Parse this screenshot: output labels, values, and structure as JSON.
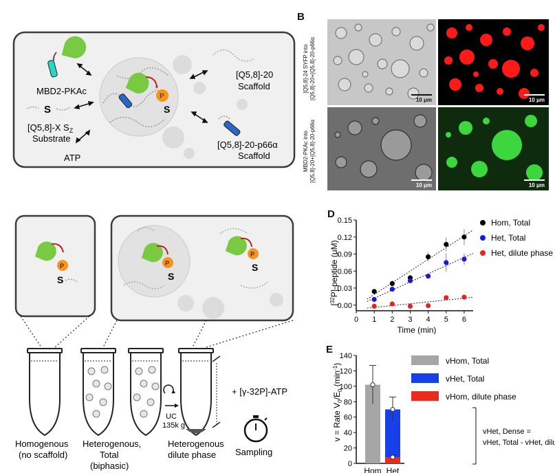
{
  "panels": {
    "B": "B",
    "D": "D",
    "E": "E"
  },
  "panelA": {
    "mbd2": "MBD2-PKAc",
    "substrate_line1": "[Q5,8]-X S",
    "substrate_sub": "Z",
    "substrate_line2": "Substrate",
    "atp": "ATP",
    "scaffold20_line1": "[Q5,8]-20",
    "scaffold20_line2": "Scaffold",
    "scaffoldp66_line1": "[Q5,8]-20-p66α",
    "scaffoldp66_line2": "Scaffold",
    "p": "P",
    "s": "S"
  },
  "panelB": {
    "row1_label1": "[Q5,8]-24 SYFP into",
    "row1_label2": "[Q5,8]-20+[Q5,8]-20-p66α",
    "row2_label1": "MBD2-PKAc into",
    "row2_label2": "[Q5,8]-20+[Q5,8]-20-p66α",
    "scale": "10 μm"
  },
  "panelC": {
    "tube1_line1": "Homogenous",
    "tube1_line2": "(no scaffold)",
    "tube2_line1": "Heterogenous,",
    "tube2_line2": "Total",
    "tube2_line3": "(biphasic)",
    "tube4_line1": "Heterogenous",
    "tube4_line2": "dilute phase",
    "uc_line1": "UC",
    "uc_line2": "135k g",
    "atp": "+ [γ-32P]-ATP",
    "sampling": "Sampling"
  },
  "chart_data": [
    {
      "type": "scatter",
      "xlabel": "Time (min)",
      "ylabel": "[32P]-peptide (μM)",
      "xlim": [
        0,
        6.5
      ],
      "ylim": [
        -0.01,
        0.15
      ],
      "xticks": [
        0,
        1,
        2,
        3,
        4,
        5,
        6
      ],
      "yticks": [
        0.0,
        0.03,
        0.06,
        0.09,
        0.12,
        0.15
      ],
      "legend_position": "right",
      "series": [
        {
          "name": "Hom, Total",
          "color": "#000000",
          "x": [
            1,
            2,
            3,
            4,
            5,
            6
          ],
          "y": [
            0.024,
            0.038,
            0.048,
            0.085,
            0.107,
            0.12
          ],
          "err": [
            0.004,
            0.005,
            0.005,
            0.008,
            0.012,
            0.014
          ]
        },
        {
          "name": "Het, Total",
          "color": "#1a1adb",
          "x": [
            1,
            2,
            3,
            4,
            5,
            6
          ],
          "y": [
            0.01,
            0.028,
            0.043,
            0.051,
            0.075,
            0.081
          ],
          "err": [
            0.003,
            0.004,
            0.004,
            0.004,
            0.016,
            0.01
          ]
        },
        {
          "name": "Het, dilute phase",
          "color": "#e8231e",
          "x": [
            1,
            2,
            3,
            4,
            5,
            6
          ],
          "y": [
            -0.002,
            0.002,
            -0.002,
            -0.001,
            0.013,
            0.014
          ],
          "err": [
            0.002,
            0.002,
            0.002,
            0.002,
            0.004,
            0.003
          ]
        }
      ]
    },
    {
      "type": "bar",
      "categories": [
        "Hom",
        "Het"
      ],
      "ylabel": "v = Rate V0/E0 (min-1)",
      "ylim": [
        0,
        140
      ],
      "yticks": [
        0,
        20,
        40,
        60,
        80,
        100,
        120,
        140
      ],
      "series": [
        {
          "name": "vHom, Total",
          "color": "#a6a6a6",
          "values": [
            102,
            0
          ],
          "err": [
            25,
            0
          ]
        },
        {
          "name": "vHet, Total",
          "color": "#1740e8",
          "values": [
            0,
            70
          ],
          "err": [
            0,
            16
          ]
        },
        {
          "name": "vHom, dilute phase",
          "color": "#ee2a1c",
          "values": [
            0,
            8
          ],
          "err": [
            0,
            3
          ]
        }
      ],
      "annotation_line1": "vHet, Dense =",
      "annotation_line2": "vHet, Total - vHet, dilute"
    }
  ]
}
